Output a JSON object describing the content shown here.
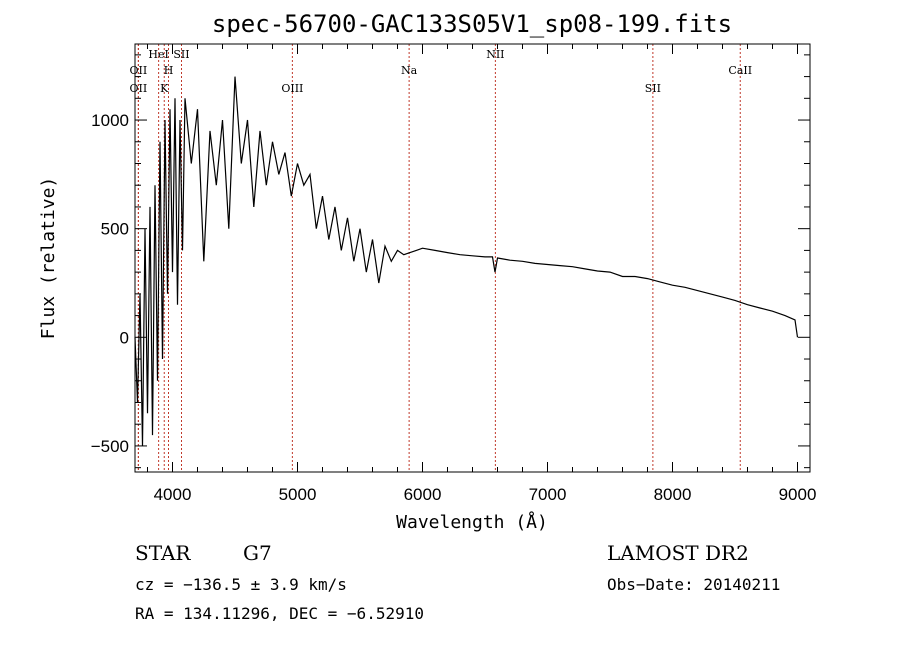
{
  "chart_data": {
    "type": "line",
    "title": "spec-56700-GAC133S05V1_sp08-199.fits",
    "xlabel": "Wavelength (Å)",
    "ylabel": "Flux (relative)",
    "xlim": [
      3700,
      9100
    ],
    "ylim": [
      -620,
      1350
    ],
    "x_ticks": [
      4000,
      5000,
      6000,
      7000,
      8000,
      9000
    ],
    "y_ticks": [
      -500,
      0,
      500,
      1000
    ],
    "grid": false,
    "series": [
      {
        "x": [
          3700,
          3720,
          3740,
          3760,
          3780,
          3800,
          3820,
          3840,
          3860,
          3880,
          3900,
          3920,
          3940,
          3960,
          3980,
          4000,
          4020,
          4040,
          4060,
          4080,
          4100,
          4150,
          4200,
          4250,
          4300,
          4350,
          4400,
          4450,
          4500,
          4550,
          4600,
          4650,
          4700,
          4750,
          4800,
          4850,
          4900,
          4950,
          5000,
          5050,
          5100,
          5150,
          5200,
          5250,
          5300,
          5350,
          5400,
          5450,
          5500,
          5550,
          5600,
          5650,
          5700,
          5750,
          5800,
          5850,
          5900,
          5950,
          6000,
          6100,
          6200,
          6300,
          6400,
          6500,
          6560,
          6580,
          6600,
          6700,
          6800,
          6900,
          7000,
          7100,
          7200,
          7300,
          7400,
          7500,
          7600,
          7700,
          7800,
          7900,
          8000,
          8100,
          8200,
          8300,
          8400,
          8500,
          8600,
          8700,
          8800,
          8900,
          8980,
          9000
        ],
        "values": [
          0,
          -300,
          200,
          -500,
          500,
          -350,
          600,
          -450,
          700,
          -200,
          900,
          -100,
          1000,
          200,
          1050,
          300,
          1100,
          150,
          1000,
          400,
          1100,
          800,
          1050,
          350,
          950,
          700,
          1000,
          500,
          1200,
          800,
          1000,
          600,
          950,
          700,
          900,
          750,
          850,
          650,
          800,
          700,
          750,
          500,
          650,
          450,
          600,
          400,
          550,
          350,
          500,
          300,
          450,
          250,
          420,
          350,
          400,
          380,
          390,
          400,
          410,
          400,
          390,
          380,
          375,
          370,
          370,
          300,
          365,
          355,
          350,
          340,
          335,
          330,
          325,
          315,
          305,
          300,
          280,
          280,
          270,
          255,
          240,
          230,
          215,
          200,
          185,
          170,
          150,
          135,
          120,
          100,
          80,
          0
        ]
      }
    ],
    "lines": [
      {
        "name": "OII",
        "x": 3727
      },
      {
        "name": "OII",
        "x": 3727
      },
      {
        "name": "HeI",
        "x": 3889
      },
      {
        "name": "H",
        "x": 3968
      },
      {
        "name": "K",
        "x": 3934
      },
      {
        "name": "SII",
        "x": 4072
      },
      {
        "name": "OIII",
        "x": 4959
      },
      {
        "name": "Na",
        "x": 5893
      },
      {
        "name": "NII",
        "x": 6583
      },
      {
        "name": "SII",
        "x": 7843
      },
      {
        "name": "CaII",
        "x": 8542
      }
    ]
  },
  "info": {
    "object_type": "STAR",
    "subclass": "G7",
    "survey": "LAMOST DR2",
    "cz": "cz = −136.5 ± 3.9 km/s",
    "obs_date": "Obs−Date: 20140211",
    "coords": "RA = 134.11296, DEC =  −6.52910"
  },
  "colors": {
    "spectrum": "#000000",
    "line_markers": "#c0392b"
  }
}
